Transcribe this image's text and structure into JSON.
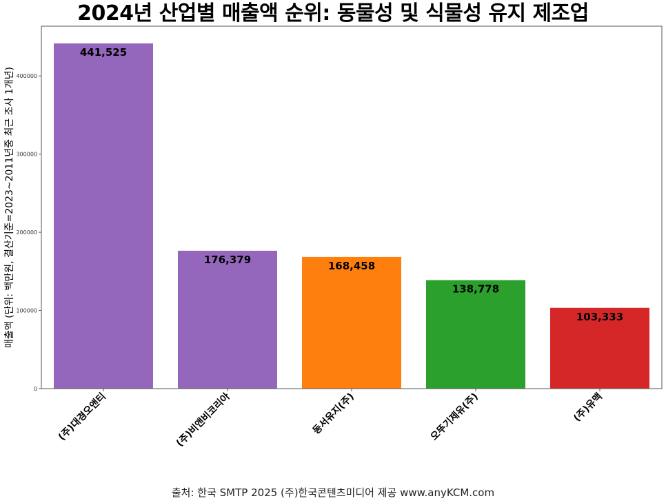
{
  "chart_data": {
    "type": "bar",
    "title": "2024년 산업별 매출액 순위: 동물성 및 식물성 유지 제조업",
    "xlabel": "",
    "ylabel": "매출액 (단위: 백만원, 결산기준=2023~2011년중 최근 조사 1개년)",
    "categories": [
      "(주)대경오앤티",
      "(주)비앤비코리아",
      "동서유지(주)",
      "오뚜기제유(주)",
      "(주)유맥"
    ],
    "values": [
      441525,
      176379,
      168458,
      138778,
      103333
    ],
    "value_labels": [
      "441,525",
      "176,379",
      "168,458",
      "138,778",
      "103,333"
    ],
    "colors": [
      "#9467bd",
      "#9467bd",
      "#ff7f0e",
      "#2ca02c",
      "#d62728"
    ],
    "yticks": [
      0,
      100000,
      200000,
      300000,
      400000
    ],
    "ylim": [
      0,
      463601
    ],
    "grid": false,
    "legend": "none"
  },
  "footer": {
    "source": "출처: 한국 SMTP 2025  (주)한국콘텐츠미디어 제공  www.anyKCM.com"
  }
}
